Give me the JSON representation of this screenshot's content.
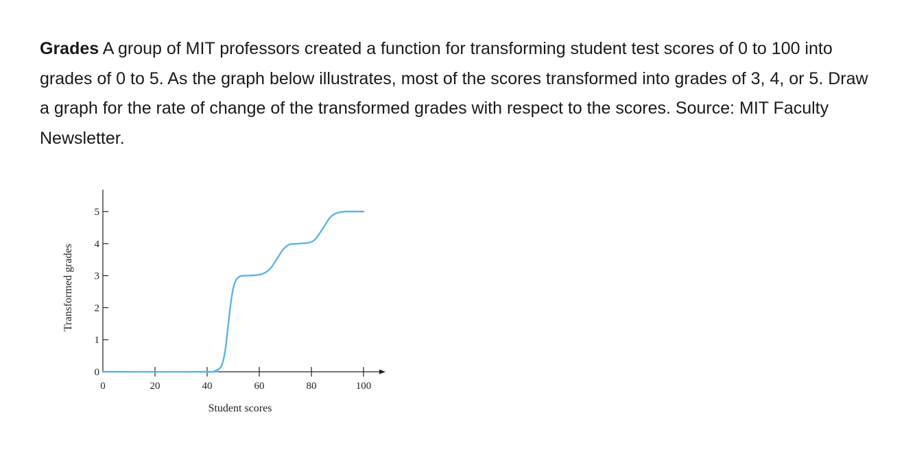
{
  "problem": {
    "heading": "Grades",
    "text": "A group of MIT professors created a function for transforming student test scores of 0 to 100 into grades of 0 to 5. As the graph below illustrates, most of the scores transformed into grades of 3, 4, or 5. Draw a graph for the rate of change of the transformed grades with respect to the scores. Source: MIT Faculty Newsletter."
  },
  "colors": {
    "curve": "#5ab4ea",
    "axis": "#222222"
  },
  "chart_data": {
    "type": "line",
    "title": "",
    "xlabel": "Student scores",
    "ylabel": "Transformed grades",
    "xlim": [
      0,
      100
    ],
    "ylim": [
      0,
      5
    ],
    "x_ticks": [
      "0",
      "20",
      "40",
      "60",
      "80",
      "100"
    ],
    "y_ticks": [
      "0",
      "1",
      "2",
      "3",
      "4",
      "5"
    ],
    "grid": false,
    "series": [
      {
        "x": [
          0,
          40,
          43,
          45,
          46,
          47,
          48,
          49,
          50,
          51,
          52,
          53,
          55,
          58,
          60,
          62,
          64,
          65,
          67,
          69,
          71,
          73,
          75,
          77,
          79,
          81,
          83,
          85,
          87,
          89,
          91,
          93,
          95,
          100
        ],
        "y": [
          0,
          0,
          0.03,
          0.12,
          0.3,
          0.7,
          1.4,
          2.1,
          2.6,
          2.85,
          2.95,
          2.99,
          3.0,
          3.01,
          3.03,
          3.08,
          3.2,
          3.3,
          3.55,
          3.8,
          3.95,
          3.99,
          4.0,
          4.01,
          4.03,
          4.1,
          4.3,
          4.55,
          4.8,
          4.93,
          4.98,
          5.0,
          5.0,
          5.0
        ]
      }
    ]
  }
}
